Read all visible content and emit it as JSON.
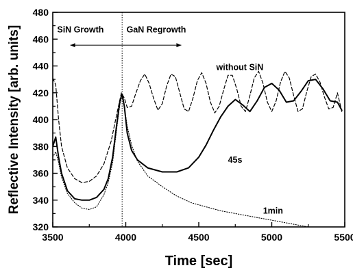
{
  "chart_data": {
    "type": "line",
    "xlabel": "Time [sec]",
    "ylabel": "Reflective Intensity [arb. units]",
    "xlim": [
      3500,
      5500
    ],
    "ylim": [
      320,
      480
    ],
    "xticks": [
      "3500",
      "4000",
      "4500",
      "5000",
      "5500"
    ],
    "yticks": [
      "320",
      "340",
      "360",
      "380",
      "400",
      "420",
      "440",
      "460",
      "480"
    ],
    "grid": false,
    "legend": "none",
    "phase_boundary_x": 3975,
    "annotations": [
      {
        "text": "SiN Growth",
        "x": 3530,
        "y": 465
      },
      {
        "text": "GaN Regrowth",
        "x": 4005,
        "y": 465
      },
      {
        "text": "without SiN",
        "x": 4620,
        "y": 437
      },
      {
        "text": "45s",
        "x": 4700,
        "y": 368
      },
      {
        "text": "1min",
        "x": 4940,
        "y": 330
      }
    ],
    "series": [
      {
        "style": "solid",
        "x": [
          3500,
          3520,
          3540,
          3560,
          3600,
          3650,
          3700,
          3750,
          3800,
          3850,
          3880,
          3910,
          3940,
          3960,
          3975,
          3990,
          4010,
          4040,
          4080,
          4150,
          4250,
          4350,
          4430,
          4500,
          4550,
          4600,
          4650,
          4700,
          4750,
          4800,
          4850,
          4900,
          4950,
          5000,
          5050,
          5100,
          5150,
          5200,
          5250,
          5300,
          5350,
          5400,
          5450,
          5480
        ],
        "y": [
          380,
          387,
          372,
          360,
          347,
          341,
          340,
          340,
          342,
          348,
          356,
          372,
          398,
          414,
          419,
          410,
          390,
          377,
          370,
          364,
          361,
          361,
          364,
          372,
          381,
          392,
          402,
          410,
          415,
          411,
          406,
          414,
          424,
          427,
          422,
          413,
          414,
          421,
          429,
          430,
          423,
          414,
          413,
          407
        ]
      },
      {
        "style": "dashed",
        "x": [
          3500,
          3520,
          3540,
          3560,
          3600,
          3650,
          3700,
          3750,
          3800,
          3850,
          3900,
          3940,
          3970,
          3990,
          4010,
          4040,
          4070,
          4100,
          4130,
          4160,
          4190,
          4220,
          4250,
          4280,
          4310,
          4340,
          4370,
          4400,
          4430,
          4460,
          4490,
          4520,
          4550,
          4580,
          4610,
          4640,
          4670,
          4700,
          4730,
          4760,
          4790,
          4820,
          4850,
          4880,
          4910,
          4940,
          4970,
          5000,
          5030,
          5060,
          5090,
          5120,
          5150,
          5180,
          5210,
          5240,
          5270,
          5300,
          5330,
          5360,
          5390,
          5420,
          5450,
          5480
        ],
        "y": [
          431,
          426,
          400,
          380,
          364,
          356,
          353,
          354,
          358,
          367,
          384,
          405,
          420,
          416,
          409,
          410,
          420,
          429,
          434,
          427,
          416,
          407,
          412,
          425,
          434,
          432,
          420,
          408,
          406,
          416,
          429,
          435,
          427,
          413,
          405,
          410,
          422,
          433,
          433,
          423,
          410,
          406,
          418,
          431,
          436,
          427,
          413,
          406,
          414,
          428,
          436,
          431,
          418,
          406,
          408,
          421,
          432,
          434,
          428,
          417,
          408,
          409,
          420,
          406
        ]
      },
      {
        "style": "dotted",
        "x": [
          3500,
          3520,
          3540,
          3560,
          3600,
          3650,
          3700,
          3750,
          3800,
          3850,
          3880,
          3910,
          3940,
          3960,
          3975,
          3990,
          4010,
          4040,
          4080,
          4150,
          4250,
          4350,
          4450,
          4550,
          4650,
          4750,
          4850,
          4950,
          5050,
          5150,
          5250,
          5350,
          5450,
          5500
        ],
        "y": [
          372,
          376,
          368,
          357,
          345,
          338,
          334,
          333,
          335,
          344,
          353,
          368,
          395,
          412,
          418,
          410,
          395,
          381,
          369,
          358,
          350,
          343,
          338,
          335,
          332,
          330,
          328,
          326,
          324,
          322,
          320,
          319,
          318,
          318
        ]
      }
    ]
  }
}
